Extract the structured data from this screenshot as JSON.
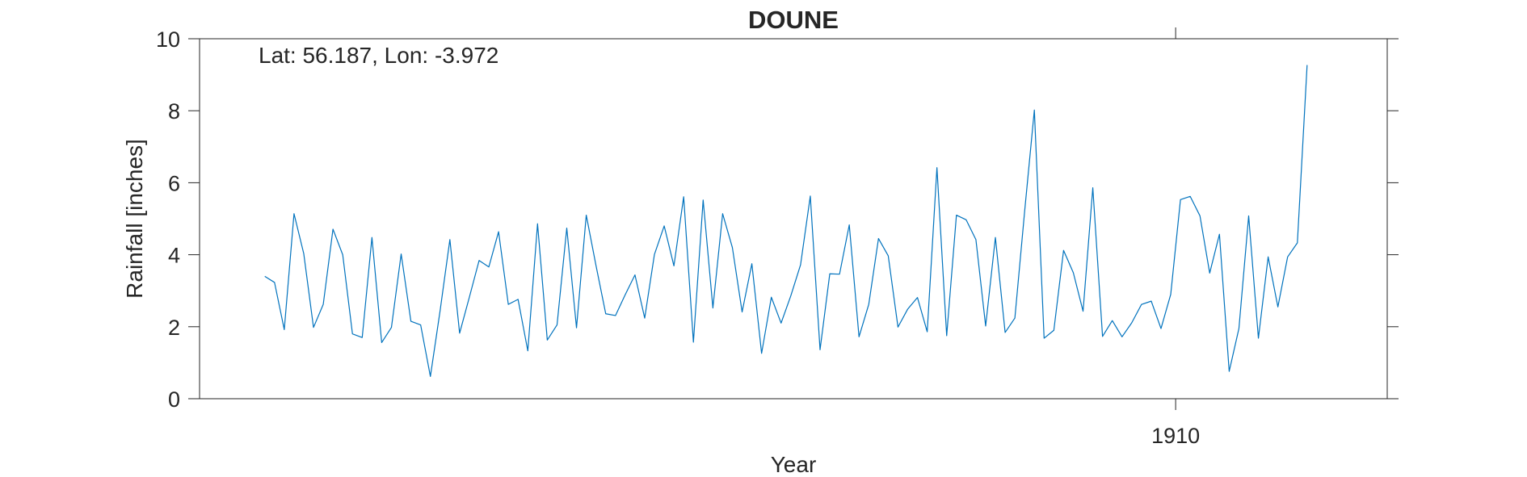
{
  "chart_data": {
    "type": "line",
    "title": "DOUNE",
    "xlabel": "Year",
    "ylabel": "Rainfall [inches]",
    "annotation": "Lat: 56.187, Lon: -3.972",
    "ylim": [
      0,
      10
    ],
    "yticks": [
      0,
      2,
      4,
      6,
      8,
      10
    ],
    "xticks": [
      {
        "value": 1910,
        "label": "1910"
      }
    ],
    "xlim": [
      1901.65,
      1911.81
    ],
    "grid": false,
    "series": [
      {
        "color": "#0072BD",
        "x_start": 1902.208,
        "x_step": 0.0833333,
        "values": [
          3.4,
          3.23,
          1.92,
          5.14,
          4.03,
          1.98,
          2.62,
          4.71,
          4.0,
          1.8,
          1.7,
          4.48,
          1.56,
          1.98,
          4.02,
          2.15,
          2.05,
          0.62,
          2.45,
          4.42,
          1.82,
          2.82,
          3.84,
          3.66,
          4.64,
          2.62,
          2.76,
          1.33,
          4.86,
          1.63,
          2.05,
          4.74,
          1.97,
          5.1,
          3.7,
          2.36,
          2.31,
          2.89,
          3.44,
          2.24,
          4.01,
          4.8,
          3.69,
          5.61,
          1.57,
          5.52,
          2.52,
          5.14,
          4.2,
          2.41,
          3.75,
          1.26,
          2.82,
          2.1,
          2.86,
          3.72,
          5.63,
          1.36,
          3.47,
          3.46,
          4.83,
          1.72,
          2.62,
          4.45,
          3.97,
          1.99,
          2.49,
          2.81,
          1.86,
          6.42,
          1.75,
          5.1,
          4.97,
          4.42,
          2.02,
          4.48,
          1.84,
          2.24,
          5.2,
          8.02,
          1.68,
          1.9,
          4.12,
          3.5,
          2.43,
          5.86,
          1.73,
          2.17,
          1.72,
          2.11,
          2.62,
          2.71,
          1.95,
          2.9,
          5.53,
          5.62,
          5.08,
          3.49,
          4.57,
          0.76,
          1.95,
          5.08,
          1.68,
          3.94,
          2.55,
          3.94,
          4.33,
          9.27
        ]
      }
    ]
  }
}
